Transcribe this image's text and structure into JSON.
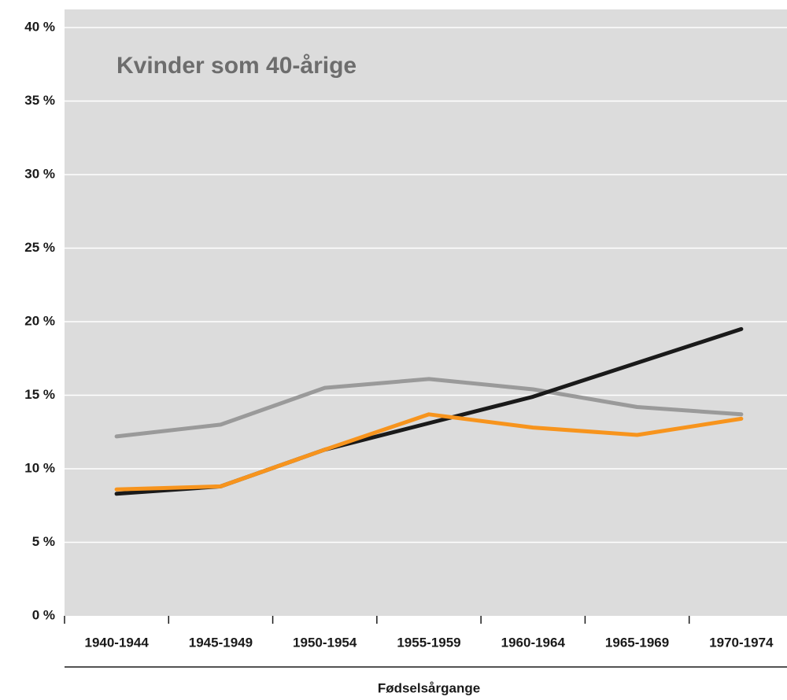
{
  "chart_data": {
    "type": "line",
    "title": "Kvinder som 40-årige",
    "x_label": "Fødselsårgange",
    "categories": [
      "1940-1944",
      "1945-1949",
      "1950-1954",
      "1955-1959",
      "1960-1964",
      "1965-1969",
      "1970-1974"
    ],
    "series": [
      {
        "color": "#9a9a9a",
        "values": [
          12.2,
          13.0,
          15.5,
          16.1,
          15.4,
          14.2,
          13.7
        ]
      },
      {
        "color": "#1a1a1a",
        "values": [
          8.3,
          8.8,
          11.3,
          13.1,
          14.9,
          17.2,
          19.5
        ]
      },
      {
        "color": "#f7941d",
        "values": [
          8.6,
          8.8,
          11.3,
          13.7,
          12.8,
          12.3,
          13.4
        ]
      }
    ],
    "ylim": [
      0,
      40
    ],
    "yticks": [
      {
        "value": 0,
        "label": "0 %"
      },
      {
        "value": 5,
        "label": "5 %"
      },
      {
        "value": 10,
        "label": "10 %"
      },
      {
        "value": 15,
        "label": "15 %"
      },
      {
        "value": 20,
        "label": "20 %"
      },
      {
        "value": 25,
        "label": "25 %"
      },
      {
        "value": 30,
        "label": "30 %"
      },
      {
        "value": 35,
        "label": "35 %"
      },
      {
        "value": 40,
        "label": "40 %"
      }
    ],
    "grid": true
  }
}
